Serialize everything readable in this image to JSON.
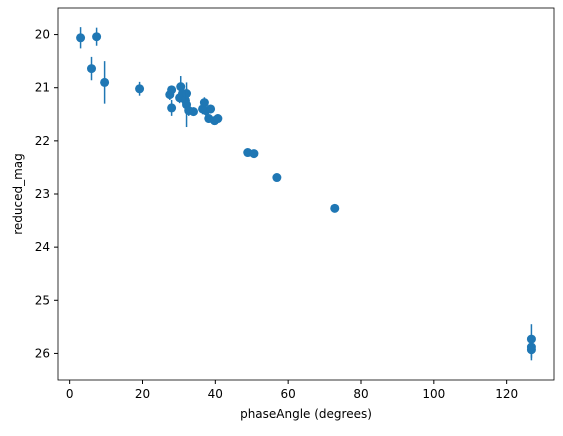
{
  "chart_data": {
    "type": "scatter",
    "xlabel": "phaseAngle (degrees)",
    "ylabel": "reduced_mag",
    "x": [
      3,
      7.4,
      6,
      9.6,
      19.2,
      27.5,
      28,
      28,
      30.2,
      30.5,
      31,
      31.8,
      32.1,
      32.1,
      32.7,
      34,
      36.5,
      37,
      37.4,
      38.2,
      38.7,
      39.8,
      40.7,
      48.9,
      50.6,
      56.9,
      72.8,
      126.8,
      126.8,
      126.8
    ],
    "y": [
      20.06,
      20.04,
      20.64,
      20.9,
      21.02,
      21.13,
      21.04,
      21.38,
      21.19,
      20.98,
      21.11,
      21.24,
      21.11,
      21.32,
      21.43,
      21.45,
      21.4,
      21.28,
      21.43,
      21.58,
      21.4,
      21.62,
      21.58,
      22.22,
      22.24,
      22.69,
      23.27,
      25.73,
      25.88,
      25.93
    ],
    "error": [
      0.2,
      0.17,
      0.22,
      0.4,
      0.13,
      0.1,
      0.08,
      0.15,
      0.1,
      0.2,
      0.1,
      0.1,
      0.1,
      0.42,
      0.1,
      0.08,
      0.1,
      0.1,
      0.1,
      0.08,
      0.08,
      0.08,
      0.08,
      0.05,
      0.05,
      0.06,
      0.05,
      0.28,
      0.2,
      0.2
    ],
    "color": "#1f77b4",
    "xlim": [
      -3.2,
      133
    ],
    "xticks": [
      0,
      20,
      40,
      60,
      80,
      100,
      120
    ],
    "ylim": [
      26.5,
      19.5
    ],
    "yticks": [
      20,
      21,
      22,
      23,
      24,
      25,
      26
    ]
  }
}
